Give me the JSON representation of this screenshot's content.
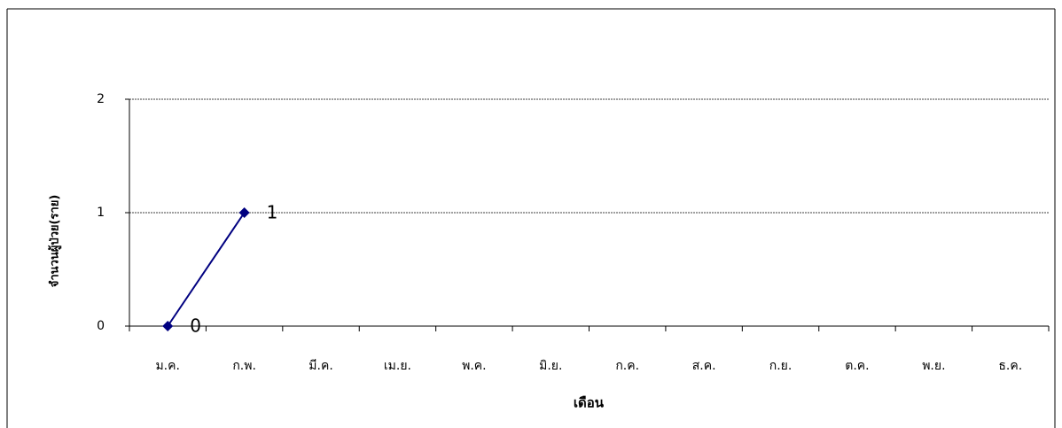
{
  "chart_data": {
    "type": "line",
    "x_label": "เดือน",
    "y_label": "จำนวนผู้ป่วย(ราย)",
    "categories": [
      "ม.ค.",
      "ก.พ.",
      "มี.ค.",
      "เม.ย.",
      "พ.ค.",
      "มิ.ย.",
      "ก.ค.",
      "ส.ค.",
      "ก.ย.",
      "ต.ค.",
      "พ.ย.",
      "ธ.ค."
    ],
    "series": [
      {
        "color": "#000080",
        "values": [
          0,
          1,
          null,
          null,
          null,
          null,
          null,
          null,
          null,
          null,
          null,
          null
        ]
      }
    ],
    "ylim": [
      0,
      2
    ],
    "yticks": [
      0,
      1,
      2
    ],
    "grid": true,
    "data_labels": true
  }
}
